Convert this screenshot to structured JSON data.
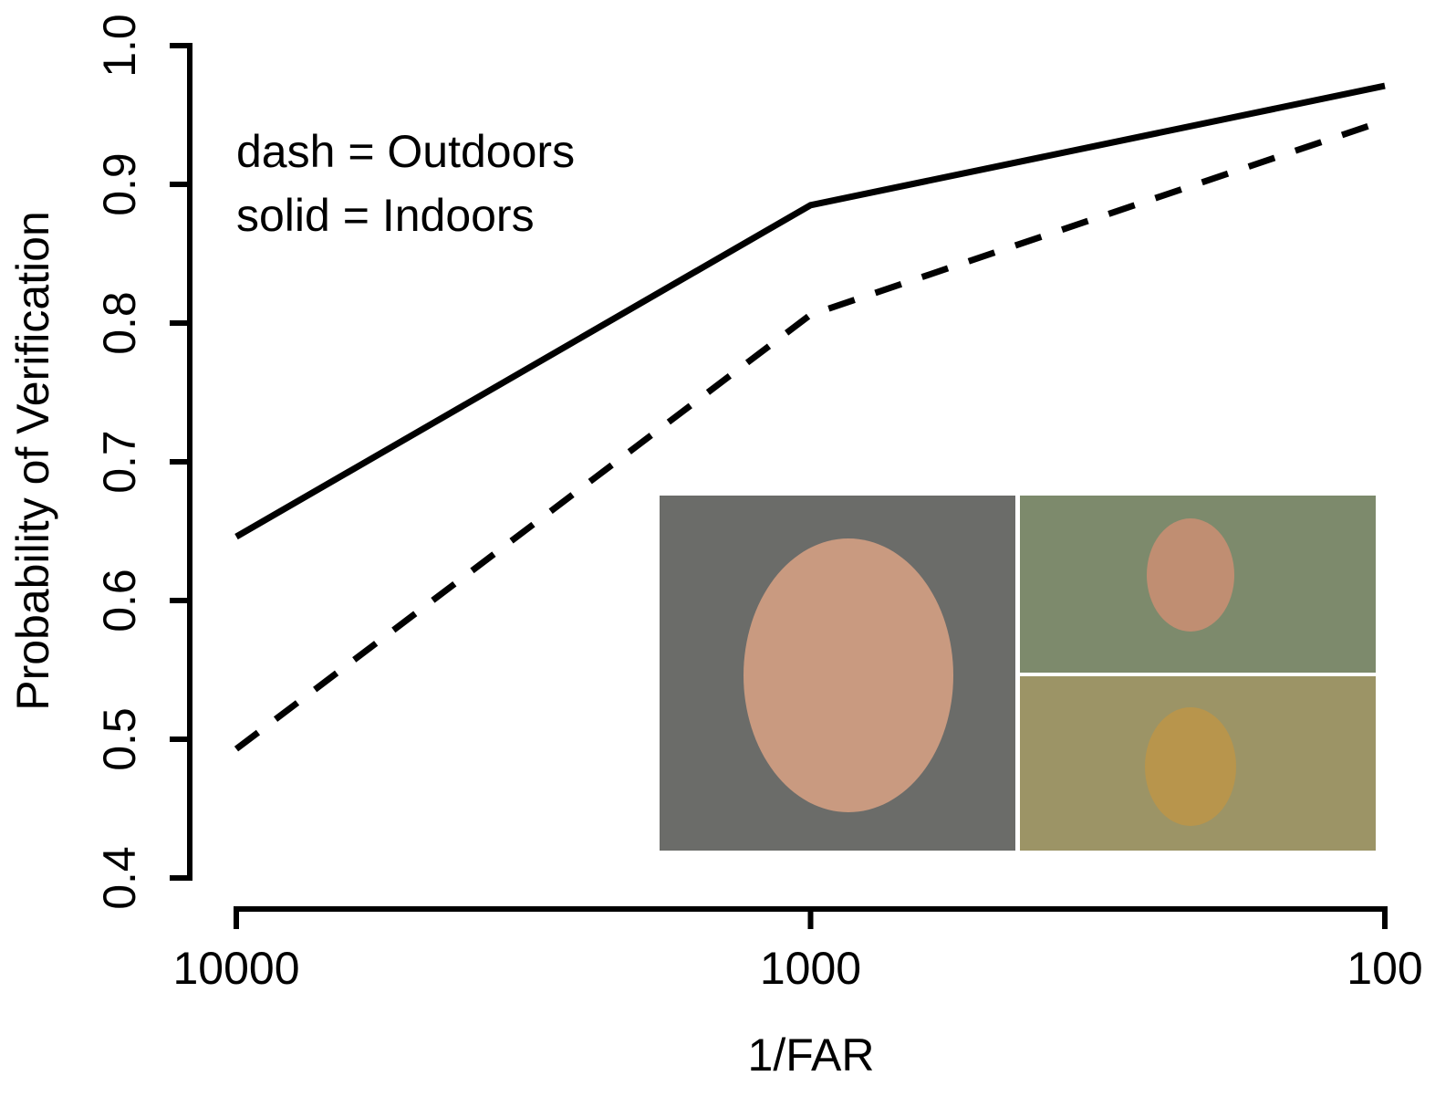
{
  "chart_data": {
    "type": "line",
    "xlabel": "1/FAR",
    "ylabel": "Probability of Verification",
    "x": [
      10000,
      1000,
      100
    ],
    "xlim": [
      10000,
      100
    ],
    "xticks": [
      10000,
      1000,
      100
    ],
    "xscale": "log",
    "ylim": [
      0.4,
      1.0
    ],
    "yticks": [
      0.4,
      0.5,
      0.6,
      0.7,
      0.8,
      0.9,
      {
        "value": 1.0,
        "label": "1.0"
      }
    ],
    "legend": "upper left",
    "series": [
      {
        "name": "dash = Outdoors",
        "color": "#000000",
        "dash": true,
        "values": [
          0.493,
          0.806,
          0.946
        ]
      },
      {
        "name": "solid = Indoors",
        "color": "#000000",
        "dash": false,
        "values": [
          0.646,
          0.885,
          0.971
        ]
      }
    ]
  }
}
